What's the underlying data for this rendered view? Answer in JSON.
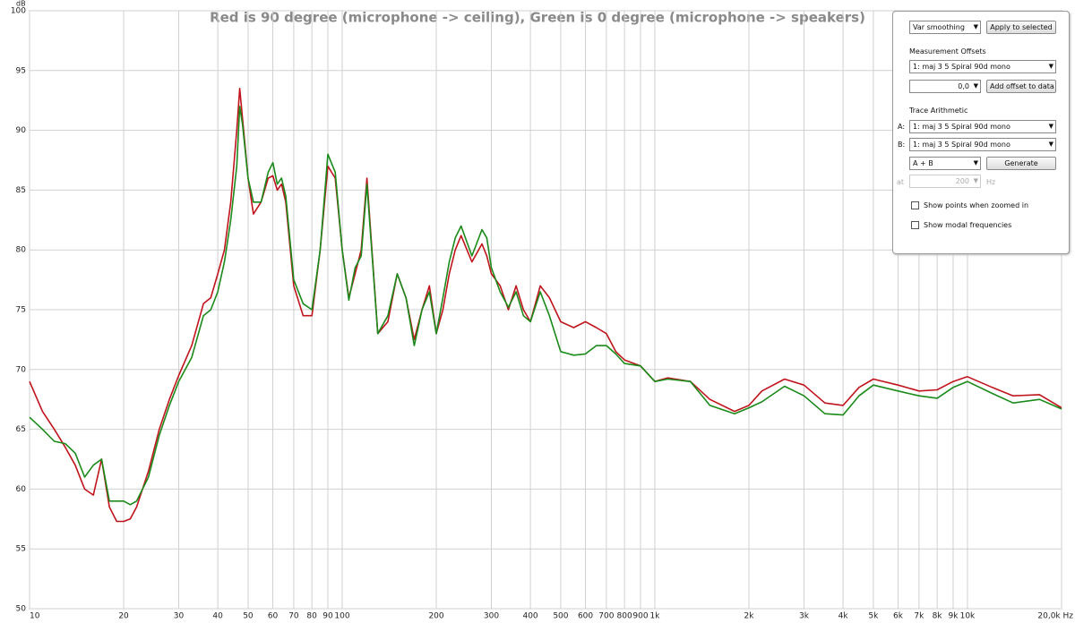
{
  "chart_data": {
    "type": "line",
    "title": "Red is 90 degree (microphone -> ceiling), Green is 0 degree (microphone -> speakers)",
    "y_label": "dB",
    "x": [
      10,
      11,
      12,
      13,
      14,
      15,
      16,
      17,
      18,
      19,
      20,
      21,
      22,
      24,
      26,
      28,
      30,
      33,
      36,
      38,
      40,
      42,
      44,
      46,
      47,
      48,
      50,
      52,
      55,
      58,
      60,
      62,
      64,
      66,
      70,
      75,
      80,
      85,
      90,
      95,
      100,
      105,
      110,
      115,
      120,
      130,
      140,
      150,
      160,
      170,
      180,
      190,
      200,
      210,
      220,
      230,
      240,
      260,
      280,
      290,
      300,
      320,
      340,
      360,
      380,
      400,
      430,
      460,
      500,
      550,
      600,
      650,
      700,
      750,
      800,
      900,
      1000,
      1100,
      1300,
      1500,
      1800,
      2000,
      2200,
      2600,
      3000,
      3500,
      4000,
      4500,
      5000,
      6000,
      7000,
      8000,
      9000,
      10000,
      12000,
      14000,
      17000,
      20000
    ],
    "series": [
      {
        "color": "#c0141c",
        "values": [
          69,
          66.5,
          65,
          63.5,
          62,
          60,
          59.5,
          62.5,
          58.5,
          57.3,
          57.3,
          57.5,
          58.5,
          61.5,
          65,
          67.5,
          69.5,
          72,
          75.5,
          76,
          78,
          80,
          84,
          90,
          93.5,
          91,
          86,
          83,
          84,
          86,
          86.2,
          85,
          85.5,
          84,
          77,
          74.5,
          74.5,
          80,
          87,
          86,
          80,
          76,
          78,
          80,
          86,
          73,
          74,
          78,
          76,
          72.5,
          75,
          77,
          73,
          75,
          78,
          80,
          81.2,
          79,
          80.5,
          79.5,
          78,
          77,
          75,
          77,
          75,
          74,
          77,
          76,
          74,
          73.5,
          74,
          73.5,
          73,
          71.5,
          70.8,
          70.3,
          69,
          69.3,
          69,
          67.5,
          66.5,
          67,
          68.2,
          69.2,
          68.7,
          67.2,
          67,
          68.5,
          69.2,
          68.7,
          68.2,
          68.3,
          69,
          69.4,
          68.5,
          67.8,
          67.9,
          66.8
        ]
      },
      {
        "color": "#1a8a1a",
        "values": [
          66,
          65,
          64,
          63.8,
          63,
          61,
          62,
          62.5,
          59,
          59,
          59,
          58.7,
          59,
          61,
          64.5,
          67,
          69,
          71,
          74.5,
          75,
          76.5,
          79,
          82.5,
          87,
          92,
          90.5,
          86,
          84,
          84,
          86.5,
          87.3,
          85.5,
          86,
          84.5,
          77.5,
          75.5,
          75,
          80,
          88,
          86.5,
          80,
          75.8,
          78.5,
          79.5,
          85.5,
          73,
          74.5,
          78,
          76,
          72,
          75,
          76.5,
          73,
          76,
          79,
          81,
          82,
          79.5,
          81.7,
          81,
          78.5,
          76.5,
          75.2,
          76.5,
          74.5,
          74,
          76.5,
          74.5,
          71.5,
          71.2,
          71.3,
          72,
          72,
          71.3,
          70.5,
          70.3,
          69,
          69.2,
          69,
          67,
          66.3,
          66.8,
          67.3,
          68.6,
          67.8,
          66.3,
          66.2,
          67.8,
          68.7,
          68.2,
          67.8,
          67.6,
          68.5,
          69,
          68,
          67.2,
          67.5,
          66.7
        ]
      }
    ],
    "xlim": [
      10,
      20000
    ],
    "xscale": "log",
    "xticks": [
      10,
      20,
      30,
      40,
      50,
      60,
      70,
      80,
      90,
      100,
      200,
      300,
      400,
      500,
      600,
      700,
      800,
      900,
      {
        "value": 1000,
        "label": "1k"
      },
      {
        "value": 2000,
        "label": "2k"
      },
      {
        "value": 3000,
        "label": "3k"
      },
      {
        "value": 4000,
        "label": "4k"
      },
      {
        "value": 5000,
        "label": "5k"
      },
      {
        "value": 6000,
        "label": "6k"
      },
      {
        "value": 7000,
        "label": "7k"
      },
      {
        "value": 8000,
        "label": "8k"
      },
      {
        "value": 9000,
        "label": "9k"
      },
      {
        "value": 10000,
        "label": "10k"
      },
      {
        "value": 20000,
        "label": "20,0k Hz"
      }
    ],
    "ylim": [
      50,
      100
    ],
    "yticks": [
      50,
      55,
      60,
      65,
      70,
      75,
      80,
      85,
      90,
      95,
      100
    ],
    "grid": true
  },
  "panel": {
    "smoothing": "Var smoothing",
    "apply_button": "Apply to selected",
    "offsets_heading": "Measurement Offsets",
    "offset_measurement": "1: maj 3 5 Spiral 90d mono",
    "offset_value": "0,0",
    "offset_button": "Add offset to data",
    "arithmetic_heading": "Trace Arithmetic",
    "a_label": "A:",
    "a_value": "1: maj 3 5 Spiral 90d mono",
    "b_label": "B:",
    "b_value": "1: maj 3 5 Spiral 90d mono",
    "operation": "A + B",
    "generate_button": "Generate",
    "at_label": "at",
    "at_value": "200",
    "at_unit": "Hz",
    "show_points": "Show points when zoomed in",
    "show_modal": "Show modal frequencies"
  }
}
